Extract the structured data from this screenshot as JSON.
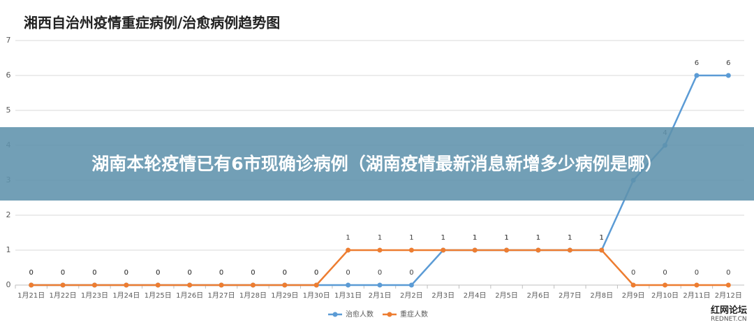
{
  "chart_data": {
    "type": "line",
    "title": "湘西自治州疫情重症病例/治愈病例趋势图",
    "categories": [
      "1月21日",
      "1月22日",
      "1月23日",
      "1月24日",
      "1月25日",
      "1月26日",
      "1月27日",
      "1月28日",
      "1月29日",
      "1月30日",
      "1月31日",
      "2月1日",
      "2月2日",
      "2月3日",
      "2月4日",
      "2月5日",
      "2月6日",
      "2月7日",
      "2月8日",
      "2月9日",
      "2月10日",
      "2月11日",
      "2月12日"
    ],
    "series": [
      {
        "name": "治愈人数",
        "color": "#5b9bd5",
        "values": [
          0,
          0,
          0,
          0,
          0,
          0,
          0,
          0,
          0,
          0,
          0,
          0,
          0,
          1,
          1,
          1,
          1,
          1,
          1,
          3,
          4,
          6,
          6
        ]
      },
      {
        "name": "重症人数",
        "color": "#ed7d31",
        "values": [
          0,
          0,
          0,
          0,
          0,
          0,
          0,
          0,
          0,
          0,
          1,
          1,
          1,
          1,
          1,
          1,
          1,
          1,
          1,
          0,
          0,
          0,
          0
        ]
      }
    ],
    "ylim": [
      0,
      7
    ],
    "yticks": [
      0,
      1,
      2,
      3,
      4,
      5,
      6,
      7
    ],
    "grid": true,
    "legend": "bottom"
  },
  "banner": {
    "text": "湖南本轮疫情已有6市现确诊病例（湖南疫情最新消息新增多少病例是哪）"
  },
  "watermark": {
    "name": "红网论坛",
    "site": "REDNET.CN"
  }
}
